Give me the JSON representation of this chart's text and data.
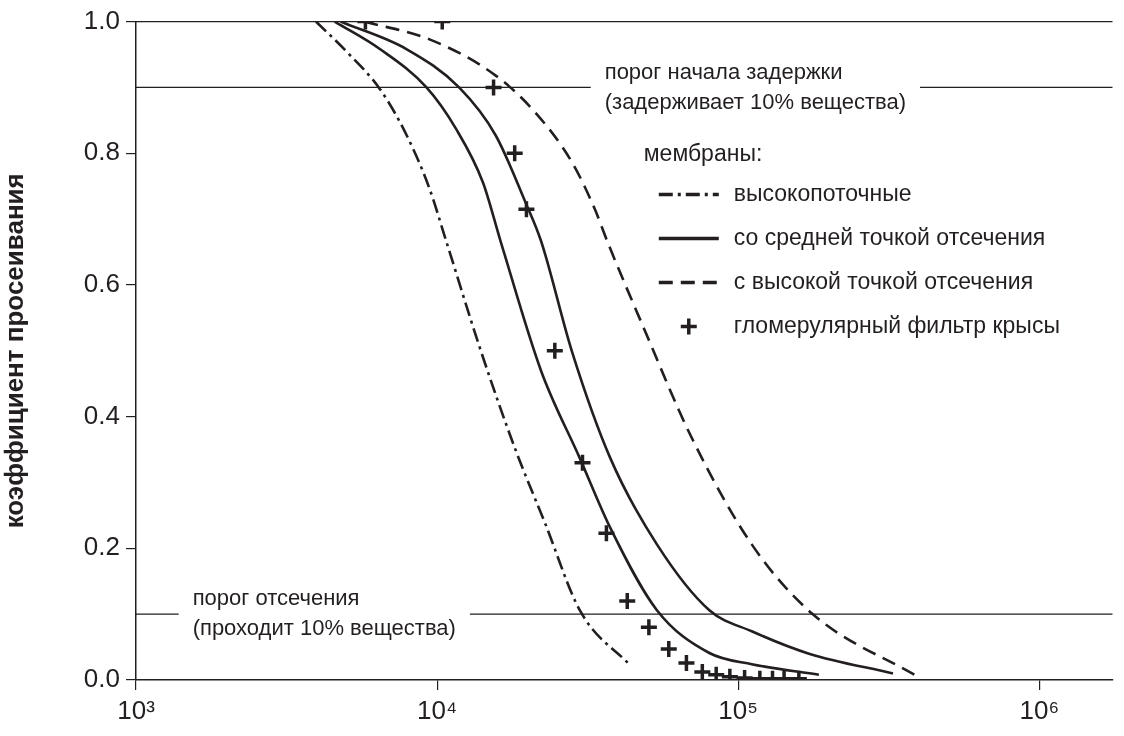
{
  "chart_data": {
    "type": "line",
    "ylabel": "коэффициент просеивания",
    "legend_title": "мембраны:",
    "legend": "top right",
    "grid": false,
    "log": "x",
    "xlim": [
      1000,
      1750000
    ],
    "xticks": [
      {
        "value": 1000,
        "label": "10³"
      },
      {
        "value": 10000,
        "label": "10⁴"
      },
      {
        "value": 100000,
        "label": "10⁵"
      },
      {
        "value": 1000000,
        "label": "10⁶"
      }
    ],
    "ylim": [
      0,
      1
    ],
    "yticks": [
      {
        "value": 0,
        "label": "0.0"
      },
      {
        "value": 0.2,
        "label": "0.2"
      },
      {
        "value": 0.4,
        "label": "0.4"
      },
      {
        "value": 0.6,
        "label": "0.6"
      },
      {
        "value": 0.8,
        "label": "0.8"
      },
      {
        "value": 1,
        "label": "1.0"
      }
    ],
    "ref_lines": [
      {
        "axis": "y",
        "value": 1,
        "label": null
      },
      {
        "axis": "y",
        "value": 0.9,
        "label": "порог начала задержки\n(задерживает 10% вещества)"
      },
      {
        "axis": "y",
        "value": 0.1,
        "label": "порог отсечения\n(проходит 10% вещества)"
      }
    ],
    "series": [
      {
        "name": "высокопоточные",
        "line_style": "dashdot",
        "marker": "none",
        "color": "#231f20",
        "x": [
          3960,
          5040,
          6470,
          7930,
          9440,
          10730,
          13970,
          18200,
          22840,
          29770,
          44060
        ],
        "values": [
          1,
          0.953,
          0.897,
          0.827,
          0.746,
          0.666,
          0.5,
          0.35,
          0.238,
          0.106,
          0.021
        ]
      },
      {
        "name": "со средней точкой отсечения",
        "line_style": "solid",
        "marker": "none",
        "color": "#231f20",
        "x": [
          4570,
          6470,
          9220,
          11560,
          14190,
          16260,
          22170,
          29770,
          37600,
          53700,
          80200,
          110900,
          185300
        ],
        "values": [
          1,
          0.958,
          0.9,
          0.837,
          0.756,
          0.666,
          0.469,
          0.337,
          0.231,
          0.106,
          0.041,
          0.024,
          0.008
        ]
      },
      {
        "line_style": "solid",
        "marker": "none",
        "color": "#231f20",
        "x": [
          4780,
          7930,
          11830,
          15660,
          19630,
          22170,
          28000,
          37600,
          53700,
          80200,
          110900,
          171800,
          326600
        ],
        "values": [
          1,
          0.958,
          0.9,
          0.827,
          0.726,
          0.666,
          0.5,
          0.337,
          0.206,
          0.106,
          0.074,
          0.04,
          0.01
        ]
      },
      {
        "name": "с высокой точкой отсечения",
        "line_style": "dashed",
        "marker": "none",
        "color": "#231f20",
        "x": [
          5730,
          9440,
          15660,
          21180,
          28000,
          33340,
          36760,
          48630,
          69880,
          110900,
          175800,
          394500
        ],
        "values": [
          1,
          0.973,
          0.918,
          0.862,
          0.787,
          0.716,
          0.666,
          0.534,
          0.369,
          0.206,
          0.101,
          0.005
        ]
      },
      {
        "name": "гломерулярный фильтр крысы",
        "type": "scatter",
        "marker": "cross",
        "color": "#231f20",
        "x": [
          5780,
          10400,
          15400,
          18100,
          19800,
          24600,
          30400,
          36500,
          42800,
          50500,
          58800,
          67300,
          76000,
          84500,
          93800,
          105000,
          118000,
          130000,
          142000,
          159000
        ],
        "values": [
          1,
          1,
          0.9,
          0.8,
          0.715,
          0.5,
          0.33,
          0.223,
          0.12,
          0.08,
          0.047,
          0.026,
          0.012,
          0.008,
          0.005,
          0.003,
          0.002,
          0.002,
          0.002,
          0.002
        ]
      }
    ]
  }
}
